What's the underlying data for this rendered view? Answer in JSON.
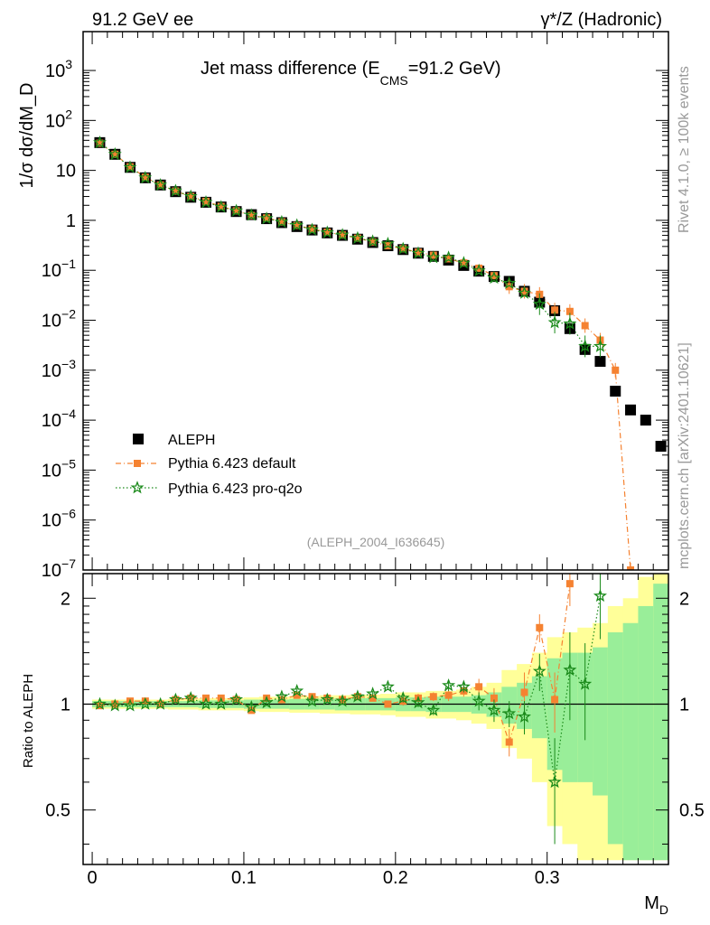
{
  "header": {
    "left_label": "91.2 GeV ee",
    "right_label": "γ*/Z (Hadronic)"
  },
  "plot_title": {
    "main": "Jet mass difference (E",
    "sub": "CMS",
    "tail": "=91.2 GeV)"
  },
  "side_texts": {
    "rivet": "Rivet 4.1.0, ≥ 100k events",
    "mcplots": "mcplots.cern.ch [arXiv:2401.10621]"
  },
  "watermark": "(ALEPH_2004_I636645)",
  "colors": {
    "data": "#000000",
    "default": "#f58231",
    "proq2o": "#1a8a1a",
    "band_inner": "#99ee99",
    "band_outer": "#ffff99"
  },
  "chart_data": [
    {
      "type": "scatter",
      "panel": "main",
      "title": "Jet mass difference (E_CMS=91.2 GeV)",
      "ylabel": "1/σ dσ/dM_D",
      "yscale": "log",
      "xlim": [
        -0.006,
        0.38
      ],
      "ylim": [
        1e-07,
        6000
      ],
      "yticks": [
        {
          "v": 1e-07,
          "label": "10",
          "sup": "−7"
        },
        {
          "v": 1e-06,
          "label": "10",
          "sup": "−6"
        },
        {
          "v": 1e-05,
          "label": "10",
          "sup": "−5"
        },
        {
          "v": 0.0001,
          "label": "10",
          "sup": "−4"
        },
        {
          "v": 0.001,
          "label": "10",
          "sup": "−3"
        },
        {
          "v": 0.01,
          "label": "10",
          "sup": "−2"
        },
        {
          "v": 0.1,
          "label": "10",
          "sup": "−1"
        },
        {
          "v": 1,
          "label": "1",
          "sup": ""
        },
        {
          "v": 10,
          "label": "10",
          "sup": ""
        },
        {
          "v": 100,
          "label": "10",
          "sup": "2"
        },
        {
          "v": 1000,
          "label": "10",
          "sup": "3"
        }
      ],
      "legend": {
        "position": "lower-left",
        "entries": [
          "ALEPH",
          "Pythia 6.423 default",
          "Pythia 6.423 pro-q2o"
        ]
      },
      "x": [
        0.005,
        0.015,
        0.025,
        0.035,
        0.045,
        0.055,
        0.065,
        0.075,
        0.085,
        0.095,
        0.105,
        0.115,
        0.125,
        0.135,
        0.145,
        0.155,
        0.165,
        0.175,
        0.185,
        0.195,
        0.205,
        0.215,
        0.225,
        0.235,
        0.245,
        0.255,
        0.265,
        0.275,
        0.285,
        0.295,
        0.305,
        0.315,
        0.325,
        0.335,
        0.345,
        0.355,
        0.365,
        0.375
      ],
      "series": [
        {
          "name": "ALEPH",
          "marker": "square",
          "values": [
            36,
            21,
            11.5,
            7.1,
            5.1,
            3.75,
            2.9,
            2.3,
            1.85,
            1.5,
            1.3,
            1.08,
            0.9,
            0.75,
            0.64,
            0.56,
            0.5,
            0.42,
            0.36,
            0.31,
            0.26,
            0.22,
            0.19,
            0.16,
            0.125,
            0.096,
            0.075,
            0.06,
            0.038,
            0.023,
            0.0155,
            0.0068,
            0.0026,
            0.0015,
            0.00038,
            0.00016,
            0.0001,
            3e-05
          ]
        },
        {
          "name": "Pythia 6.423 default",
          "marker": "square-small",
          "line": "dashdot",
          "values": [
            35,
            21,
            11.8,
            7.3,
            5.1,
            3.85,
            3.0,
            2.4,
            1.9,
            1.55,
            1.25,
            1.12,
            0.93,
            0.79,
            0.67,
            0.58,
            0.51,
            0.44,
            0.37,
            0.31,
            0.27,
            0.23,
            0.2,
            0.17,
            0.14,
            0.11,
            0.078,
            0.047,
            0.038,
            0.033,
            0.016,
            0.015,
            0.0078,
            0.004,
            0.001,
            1e-07
          ]
        },
        {
          "name": "Pythia 6.423 pro-q2o",
          "marker": "star",
          "line": "dotted",
          "values": [
            36,
            21,
            11.5,
            7.1,
            5.1,
            3.9,
            3.0,
            2.3,
            1.85,
            1.55,
            1.27,
            1.09,
            0.93,
            0.8,
            0.65,
            0.57,
            0.51,
            0.44,
            0.38,
            0.34,
            0.27,
            0.22,
            0.18,
            0.18,
            0.14,
            0.098,
            0.07,
            0.055,
            0.035,
            0.021,
            0.009,
            0.0085,
            0.003,
            0.003
          ]
        }
      ]
    },
    {
      "type": "scatter",
      "panel": "ratio",
      "ylabel": "Ratio to ALEPH",
      "xlabel": "M_D",
      "xlim": [
        -0.006,
        0.38
      ],
      "ylim": [
        0.35,
        2.35
      ],
      "yticks": [
        0.5,
        1,
        2
      ],
      "xticks": [
        0,
        0.1,
        0.2,
        0.3
      ],
      "x": [
        0.005,
        0.015,
        0.025,
        0.035,
        0.045,
        0.055,
        0.065,
        0.075,
        0.085,
        0.095,
        0.105,
        0.115,
        0.125,
        0.135,
        0.145,
        0.155,
        0.165,
        0.175,
        0.185,
        0.195,
        0.205,
        0.215,
        0.225,
        0.235,
        0.245,
        0.255,
        0.265,
        0.275,
        0.285,
        0.295,
        0.305,
        0.315,
        0.325,
        0.335,
        0.345,
        0.355,
        0.365,
        0.375
      ],
      "bands": {
        "inner_halfwidth": [
          0.02,
          0.02,
          0.02,
          0.02,
          0.02,
          0.02,
          0.02,
          0.025,
          0.025,
          0.025,
          0.03,
          0.03,
          0.03,
          0.035,
          0.035,
          0.035,
          0.04,
          0.04,
          0.04,
          0.04,
          0.045,
          0.045,
          0.05,
          0.05,
          0.05,
          0.06,
          0.08,
          0.12,
          0.15,
          0.2,
          0.35,
          0.4,
          0.4,
          0.45,
          0.6,
          0.7,
          0.9,
          1.2
        ],
        "outer_halfwidth": [
          0.03,
          0.03,
          0.03,
          0.03,
          0.03,
          0.035,
          0.035,
          0.04,
          0.04,
          0.04,
          0.045,
          0.05,
          0.05,
          0.055,
          0.055,
          0.06,
          0.06,
          0.065,
          0.065,
          0.07,
          0.08,
          0.08,
          0.09,
          0.09,
          0.1,
          0.12,
          0.15,
          0.25,
          0.3,
          0.4,
          0.55,
          0.6,
          0.65,
          0.7,
          0.9,
          1.0,
          1.3,
          1.5
        ]
      },
      "series": [
        {
          "name": "Pythia 6.423 default",
          "values": [
            0.99,
            1.0,
            1.02,
            1.02,
            1.0,
            1.03,
            1.04,
            1.04,
            1.04,
            1.03,
            0.96,
            1.04,
            1.03,
            1.06,
            1.05,
            1.04,
            1.03,
            1.05,
            1.04,
            1.0,
            1.02,
            1.04,
            1.05,
            1.06,
            1.09,
            1.12,
            1.04,
            0.78,
            1.08,
            1.65,
            1.03,
            2.2
          ],
          "errors": [
            0.01,
            0.01,
            0.01,
            0.01,
            0.01,
            0.01,
            0.01,
            0.01,
            0.01,
            0.01,
            0.02,
            0.02,
            0.02,
            0.02,
            0.02,
            0.02,
            0.02,
            0.02,
            0.02,
            0.02,
            0.03,
            0.03,
            0.03,
            0.04,
            0.04,
            0.06,
            0.07,
            0.07,
            0.15,
            0.15,
            0.2,
            0.3
          ]
        },
        {
          "name": "Pythia 6.423 pro-q2o",
          "values": [
            1.0,
            0.99,
            0.99,
            1.0,
            1.0,
            1.03,
            1.04,
            1.0,
            1.0,
            1.03,
            0.98,
            1.01,
            1.05,
            1.09,
            1.02,
            1.03,
            1.02,
            1.05,
            1.07,
            1.12,
            1.04,
            1.01,
            0.96,
            1.13,
            1.12,
            1.02,
            0.96,
            0.94,
            0.92,
            1.24,
            0.6,
            1.25,
            1.14,
            2.03
          ],
          "errors": [
            0.01,
            0.01,
            0.01,
            0.01,
            0.01,
            0.01,
            0.01,
            0.01,
            0.01,
            0.01,
            0.02,
            0.02,
            0.02,
            0.02,
            0.02,
            0.02,
            0.02,
            0.02,
            0.02,
            0.02,
            0.03,
            0.03,
            0.03,
            0.04,
            0.04,
            0.06,
            0.07,
            0.08,
            0.1,
            0.15,
            0.2,
            0.35,
            0.35,
            0.5
          ]
        }
      ]
    }
  ]
}
